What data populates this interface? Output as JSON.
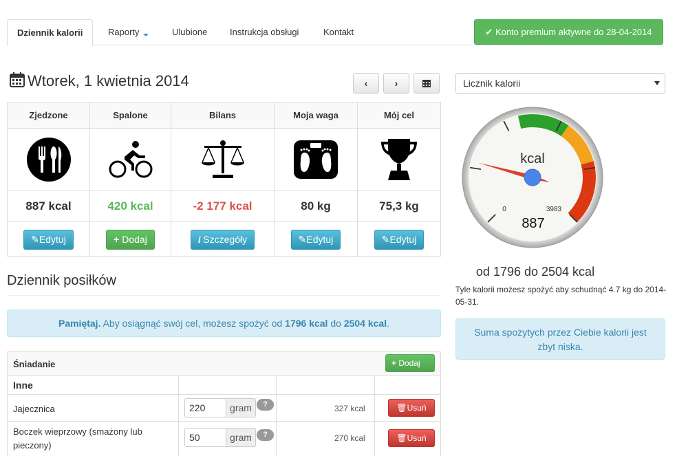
{
  "nav": {
    "tabs": [
      {
        "label": "Dziennik kalorii"
      },
      {
        "label": "Raporty"
      },
      {
        "label": "Ulubione"
      },
      {
        "label": "Instrukcja obsługi"
      },
      {
        "label": "Kontakt"
      }
    ],
    "premium_label": "Konto premium aktywne do 28-04-2014"
  },
  "date_header": {
    "title": "Wtorek, 1 kwietnia 2014",
    "prev_label": "‹",
    "next_label": "›"
  },
  "stats": [
    {
      "header": "Zjedzone",
      "value": "887 kcal",
      "value_color": "#333333",
      "button": "Edytuj",
      "icon": "cutlery-icon"
    },
    {
      "header": "Spalone",
      "value": "420 kcal",
      "value_color": "#5cb85c",
      "button": "Dodaj",
      "icon": "cyclist-icon"
    },
    {
      "header": "Bilans",
      "value": "-2 177 kcal",
      "value_color": "#d9534f",
      "button": "Szczegóły",
      "icon": "scale-icon"
    },
    {
      "header": "Moja waga",
      "value": "80 kg",
      "value_color": "#333333",
      "button": "Edytuj",
      "icon": "bathroom-scale-icon"
    },
    {
      "header": "Mój cel",
      "value": "75,3 kg",
      "value_color": "#333333",
      "button": "Edytuj",
      "icon": "trophy-icon"
    }
  ],
  "meal_log": {
    "title": "Dziennik posiłków",
    "reminder_prefix": "Pamiętaj.",
    "reminder_text": " Aby osiągnąć swój cel, możesz spożyć od ",
    "reminder_min": "1796 kcal",
    "reminder_mid": " do ",
    "reminder_max": "2504 kcal",
    "reminder_end": ".",
    "meal_name": "Śniadanie",
    "add_label": "Dodaj",
    "category": "Inne",
    "items": [
      {
        "name": "Jajecznica",
        "amount": "220",
        "unit": "gram",
        "help": "?",
        "kcal": "327 kcal",
        "delete": "Usuń"
      },
      {
        "name": "Boczek wieprzowy (smażony lub pieczony)",
        "amount": "50",
        "unit": "gram",
        "help": "?",
        "kcal": "270 kcal",
        "delete": "Usuń"
      }
    ]
  },
  "counter": {
    "select_value": "Licznik kalorii",
    "gauge_unit": "kcal",
    "gauge_min": "0",
    "gauge_max": "3983",
    "gauge_value": "887",
    "gauge_min_num": 0,
    "gauge_max_num": 3983,
    "gauge_value_num": 887,
    "range_text": "od 1796 do 2504 kcal",
    "desc_text": "Tyle kalorii możesz spożyć aby schudnąć 4.7 kg do 2014-05-31.",
    "warning": "Suma spożytych przez Ciebie kalorii jest zbyt niska."
  }
}
